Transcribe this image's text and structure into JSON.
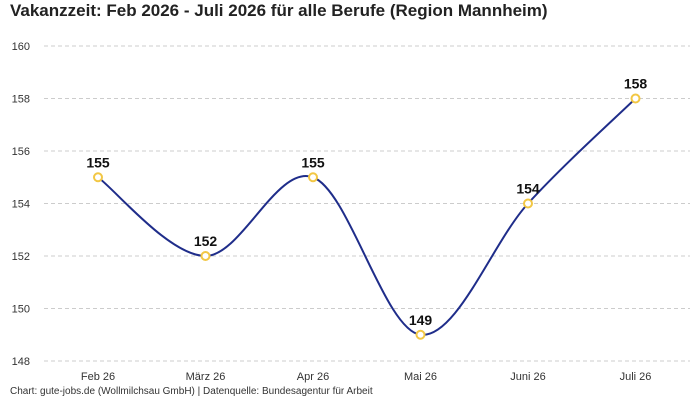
{
  "chart_data": {
    "type": "line",
    "title": "Vakanzzeit: Feb 2026 - Juli 2026 für alle Berufe (Region Mannheim)",
    "categories": [
      "Feb 26",
      "März 26",
      "Apr 26",
      "Mai 26",
      "Juni 26",
      "Juli 26"
    ],
    "series": [
      {
        "values": [
          155,
          152,
          155,
          149,
          154,
          158
        ]
      }
    ],
    "ylim": [
      148,
      160
    ],
    "yticks": [
      148,
      150,
      152,
      154,
      156,
      158,
      160
    ],
    "grid": true,
    "xlabel": "",
    "ylabel": "",
    "colors": {
      "line": "#1f2d8a",
      "marker_stroke": "#f2c744",
      "marker_fill": "#ffffff",
      "grid": "#cccccc"
    },
    "footer": "Chart: gute-jobs.de (Wollmilchsau GmbH) | Datenquelle: Bundesagentur für Arbeit"
  }
}
